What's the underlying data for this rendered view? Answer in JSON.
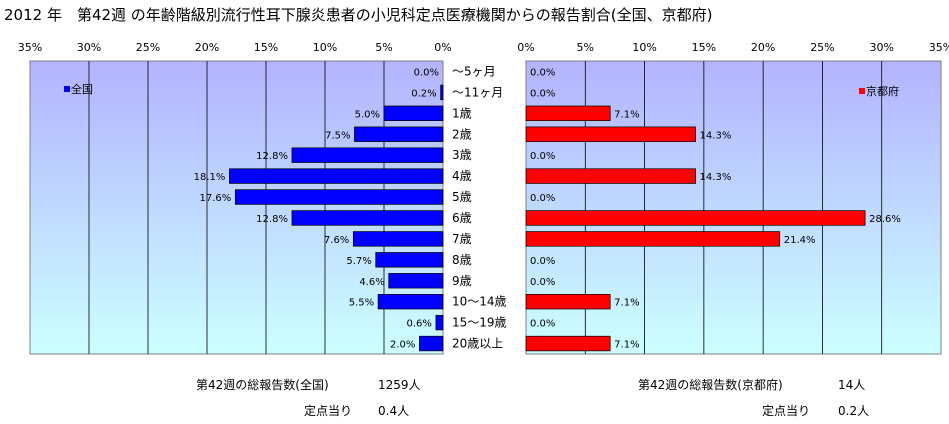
{
  "title": "2012 年　第42週 の年齢階級別流行性耳下腺炎患者の小児科定点医療機関からの報告割合(全国、京都府)",
  "chart_data": [
    {
      "type": "bar",
      "orientation": "horizontal",
      "direction": "right-to-left",
      "series": [
        {
          "name": "全国",
          "values": [
            0.0,
            0.2,
            5.0,
            7.5,
            12.8,
            18.1,
            17.6,
            12.8,
            7.6,
            5.7,
            4.6,
            5.5,
            0.6,
            2.0
          ]
        }
      ],
      "value_labels": [
        "0.0%",
        "0.2%",
        "5.0%",
        "7.5%",
        "12.8%",
        "18.1%",
        "17.6%",
        "12.8%",
        "7.6%",
        "5.7%",
        "4.6%",
        "5.5%",
        "0.6%",
        "2.0%"
      ],
      "xlim": [
        0,
        35
      ],
      "ticks": [
        "35%",
        "30%",
        "25%",
        "20%",
        "15%",
        "10%",
        "5%",
        "0%"
      ],
      "color": "#0000ff",
      "legend_position": "top-left",
      "grid": true
    },
    {
      "type": "bar",
      "orientation": "horizontal",
      "direction": "left-to-right",
      "series": [
        {
          "name": "京都府",
          "values": [
            0.0,
            0.0,
            7.1,
            14.3,
            0.0,
            14.3,
            0.0,
            28.6,
            21.4,
            0.0,
            0.0,
            7.1,
            0.0,
            7.1
          ]
        }
      ],
      "value_labels": [
        "0.0%",
        "0.0%",
        "7.1%",
        "14.3%",
        "0.0%",
        "14.3%",
        "0.0%",
        "28.6%",
        "21.4%",
        "0.0%",
        "0.0%",
        "7.1%",
        "0.0%",
        "7.1%"
      ],
      "xlim": [
        0,
        35
      ],
      "ticks": [
        "0%",
        "5%",
        "10%",
        "15%",
        "20%",
        "25%",
        "30%",
        "35%"
      ],
      "color": "#ff0000",
      "legend_position": "top-right",
      "grid": true
    }
  ],
  "categories": [
    "～5ヶ月",
    "～11ヶ月",
    "1歳",
    "2歳",
    "3歳",
    "4歳",
    "5歳",
    "6歳",
    "7歳",
    "8歳",
    "9歳",
    "10～14歳",
    "15～19歳",
    "20歳以上"
  ],
  "footer": {
    "national_total_label": "第42週の総報告数(全国)",
    "national_total_value": "1259人",
    "national_per_label": "定点当り",
    "national_per_value": "0.4人",
    "kyoto_total_label": "第42週の総報告数(京都府)",
    "kyoto_total_value": "14人",
    "kyoto_per_label": "定点当り",
    "kyoto_per_value": "0.2人"
  },
  "colors": {
    "national": "#0000ff",
    "kyoto": "#ff0000",
    "plot_top": "#b3b3ff",
    "plot_bottom": "#ccffff"
  }
}
